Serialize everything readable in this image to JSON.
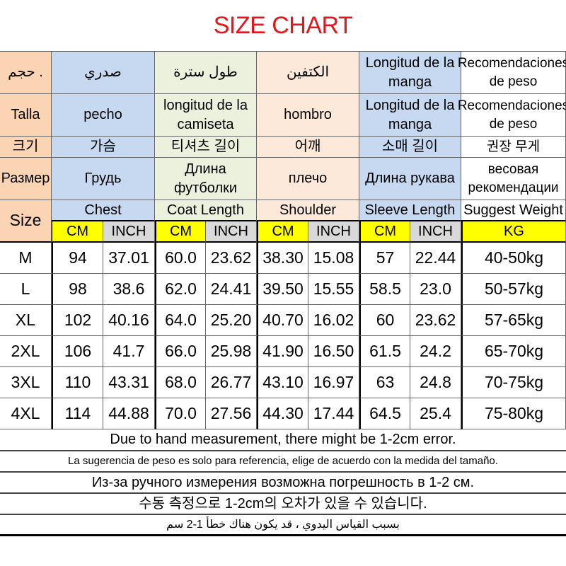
{
  "title": "SIZE CHART",
  "header_rows": [
    {
      "size": "حجم .",
      "chest": "صدري",
      "coat": "طول سترة",
      "shoulder": "الكتفين",
      "sleeve": "Longitud de la manga",
      "weight": "Recomendaciones de peso"
    },
    {
      "size": "Talla",
      "chest": "pecho",
      "coat": "longitud de la camiseta",
      "shoulder": "hombro",
      "sleeve": "Longitud de la manga",
      "weight": "Recomendaciones de peso"
    },
    {
      "size": "크기",
      "chest": "가슴",
      "coat": "티셔츠 길이",
      "shoulder": "어깨",
      "sleeve": "소매  길이",
      "weight": "권장 무게"
    },
    {
      "size": "Размер",
      "chest": "Грудь",
      "coat": "Длина футболки",
      "shoulder": "плечо",
      "sleeve": "Длина рукава",
      "weight": "весовая рекомендации"
    }
  ],
  "english_header": {
    "size": "Size",
    "chest": "Chest",
    "coat": "Coat Length",
    "shoulder": "Shoulder",
    "sleeve": "Sleeve Length",
    "weight": "Suggest Weight"
  },
  "units": {
    "cm": "CM",
    "inch": "INCH",
    "kg": "KG"
  },
  "rows": [
    [
      "M",
      "94",
      "37.01",
      "60.0",
      "23.62",
      "38.30",
      "15.08",
      "57",
      "22.44",
      "40-50kg"
    ],
    [
      "L",
      "98",
      "38.6",
      "62.0",
      "24.41",
      "39.50",
      "15.55",
      "58.5",
      "23.0",
      "50-57kg"
    ],
    [
      "XL",
      "102",
      "40.16",
      "64.0",
      "25.20",
      "40.70",
      "16.02",
      "60",
      "23.62",
      "57-65kg"
    ],
    [
      "2XL",
      "106",
      "41.7",
      "66.0",
      "25.98",
      "41.90",
      "16.50",
      "61.5",
      "24.2",
      "65-70kg"
    ],
    [
      "3XL",
      "110",
      "43.31",
      "68.0",
      "26.77",
      "43.10",
      "16.97",
      "63",
      "24.8",
      "70-75kg"
    ],
    [
      "4XL",
      "114",
      "44.88",
      "70.0",
      "27.56",
      "44.30",
      "17.44",
      "64.5",
      "25.4",
      "75-80kg"
    ]
  ],
  "notes": [
    "Due to hand measurement, there might be 1-2cm error.",
    "La sugerencia de peso es solo para referencia, elige de acuerdo con la medida del tamaño.",
    "Из-за ручного измерения возможна погрешность в 1-2 см.",
    "수동 측정으로 1-2cm의 오차가 있을 수 있습니다.",
    "بسبب القياس اليدوي ، قد يكون هناك خطأ 1-2 سم"
  ],
  "colors": {
    "title": "#e8141b",
    "size_col": "#fbd4b4",
    "chest_col": "#c6d9f0",
    "coat_col": "#ebf1dd",
    "shoulder_col": "#fde9d9",
    "cm_unit": "#ffff00",
    "inch_unit": "#d9d9d9"
  }
}
